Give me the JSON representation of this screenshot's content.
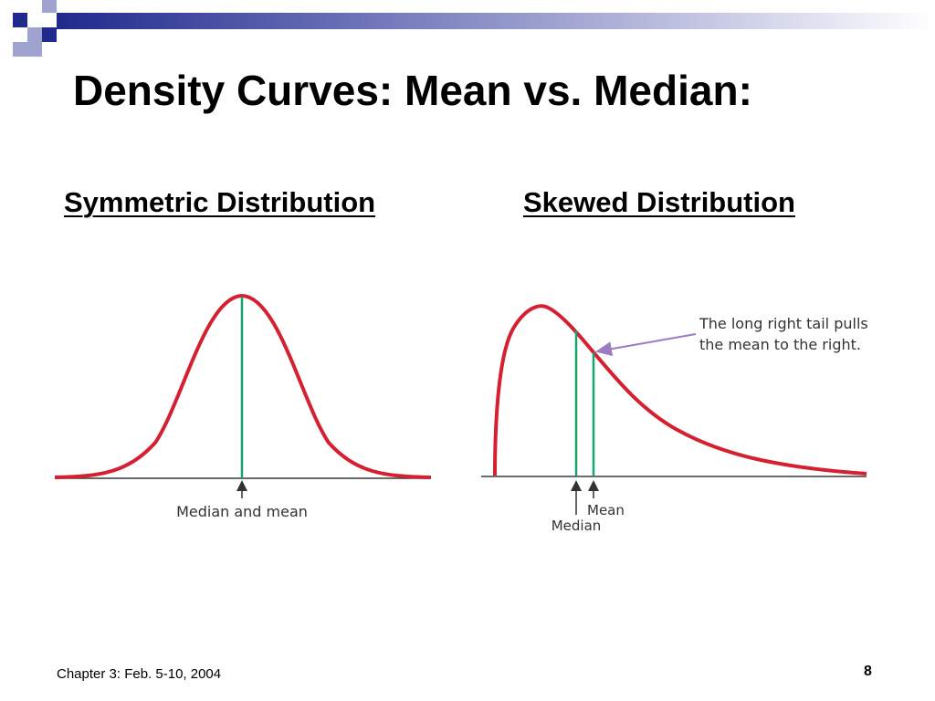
{
  "slide": {
    "title": "Density Curves: Mean vs. Median:",
    "footer": "Chapter 3: Feb. 5-10, 2004",
    "page_number": "8"
  },
  "left_panel": {
    "heading": "Symmetric Distribution",
    "marker_label": "Median and mean"
  },
  "right_panel": {
    "heading": "Skewed Distribution",
    "annotation_line1": "The long right tail pulls",
    "annotation_line2": "the mean to the right.",
    "mean_label": "Mean",
    "median_label": "Median"
  },
  "colors": {
    "curve": "#d42030",
    "marker_line": "#1aa36a",
    "annotation_arrow": "#9a7cc4",
    "deco_dark": "#1f2a8c",
    "deco_light": "#a0a3cf"
  }
}
